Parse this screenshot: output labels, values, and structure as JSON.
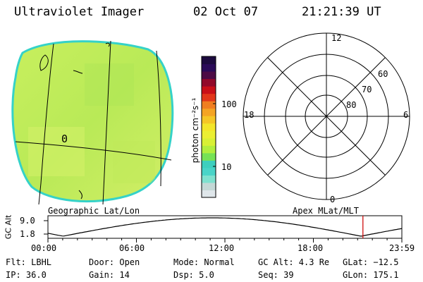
{
  "header": {
    "instrument": "Ultraviolet Imager",
    "date": "02 Oct 07",
    "time": "21:21:39 UT"
  },
  "colorbar": {
    "unit_label": "photon cm⁻²s⁻¹",
    "tick_labels": [
      "100",
      "10"
    ],
    "colors": [
      "#dfe6ea",
      "#c4d8d6",
      "#7fe1cf",
      "#49d4c8",
      "#3dcfbe",
      "#76e256",
      "#b2ee3e",
      "#d8f035",
      "#ebef32",
      "#f3e62a",
      "#f5c626",
      "#f4a424",
      "#f07e20",
      "#e2361a",
      "#c90f18",
      "#92092a",
      "#4d0b45",
      "#2a0a58",
      "#1c0a3e"
    ]
  },
  "left_panel": {
    "caption": "Geographic Lat/Lon",
    "fill_color": "#c2ec5a",
    "edge_color": "#35d2c8",
    "glyphs": [
      "0"
    ]
  },
  "right_panel": {
    "caption": "Apex MLat/MLT",
    "mlt_labels": [
      "12",
      "18",
      "6",
      "0"
    ],
    "mlat_labels": [
      "60",
      "70",
      "80"
    ]
  },
  "altitude_plot": {
    "ylabel": "GC Alt",
    "y_ticks": [
      "9.0",
      "1.8"
    ],
    "x_ticks": [
      "00:00",
      "06:00",
      "12:00",
      "18:00",
      "23:59"
    ],
    "marker_color": "#d01010",
    "marker_time_hours": 21.36
  },
  "footer": [
    [
      "Flt: LBHL",
      "Door: Open",
      "Mode: Normal",
      "GC Alt: 4.3 Re",
      "GLat: −12.5"
    ],
    [
      "IP: 36.0",
      "Gain: 14",
      "Dsp:    5.0",
      "Seq: 39",
      "GLon: 175.1"
    ]
  ]
}
